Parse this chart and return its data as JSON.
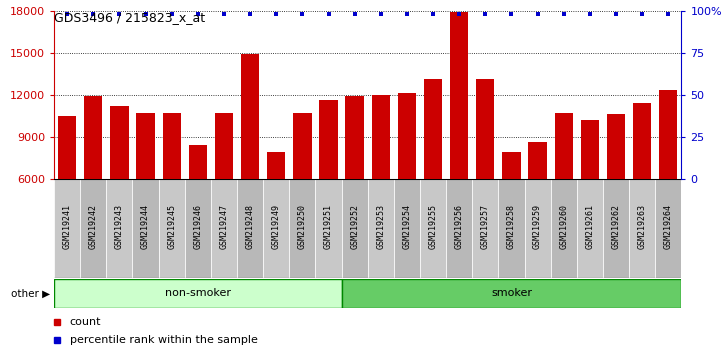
{
  "title": "GDS3496 / 215823_x_at",
  "samples": [
    "GSM219241",
    "GSM219242",
    "GSM219243",
    "GSM219244",
    "GSM219245",
    "GSM219246",
    "GSM219247",
    "GSM219248",
    "GSM219249",
    "GSM219250",
    "GSM219251",
    "GSM219252",
    "GSM219253",
    "GSM219254",
    "GSM219255",
    "GSM219256",
    "GSM219257",
    "GSM219258",
    "GSM219259",
    "GSM219260",
    "GSM219261",
    "GSM219262",
    "GSM219263",
    "GSM219264"
  ],
  "counts": [
    10500,
    11900,
    11200,
    10700,
    10700,
    8400,
    10700,
    14900,
    7900,
    10700,
    11600,
    11900,
    12000,
    12100,
    13100,
    17900,
    13100,
    7900,
    8600,
    10700,
    10200,
    10600,
    11400,
    12300
  ],
  "nonsmoker_count": 11,
  "bar_color": "#cc0000",
  "dot_color": "#0000cc",
  "nonsmoker_color": "#ccffcc",
  "smoker_color": "#66cc66",
  "tick_box_color1": "#c8c8c8",
  "tick_box_color2": "#b8b8b8",
  "y_min": 6000,
  "y_max": 18000,
  "y_ticks": [
    6000,
    9000,
    12000,
    15000,
    18000
  ],
  "right_y_ticks": [
    0,
    25,
    50,
    75,
    100
  ],
  "right_y_labels": [
    "0",
    "25",
    "50",
    "75",
    "100%"
  ],
  "legend_count_label": "count",
  "legend_pct_label": "percentile rank within the sample"
}
